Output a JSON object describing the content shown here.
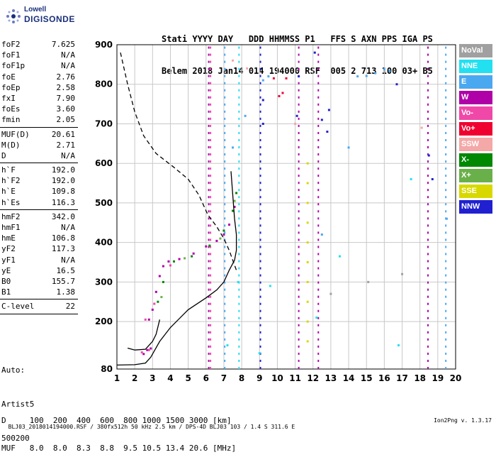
{
  "logo": {
    "line1": "Lowell",
    "line2": "DIGISONDE"
  },
  "header": {
    "row1": "Stati YYYY DAY   DDD HHMMSS P1   FFS S AXN PPS IGA PS",
    "row2": "Belem 2018 Jan14 014 194000 RSF  005 2 713 100 03+ B5"
  },
  "params": [
    {
      "k": "foF2",
      "v": "7.625"
    },
    {
      "k": "foF1",
      "v": "N/A"
    },
    {
      "k": "foF1p",
      "v": "N/A"
    },
    {
      "k": "foE",
      "v": "2.76"
    },
    {
      "k": "foEp",
      "v": "2.58"
    },
    {
      "k": "fxI",
      "v": "7.90"
    },
    {
      "k": "foEs",
      "v": "3.60"
    },
    {
      "k": "fmin",
      "v": "2.05"
    },
    {
      "sep": true
    },
    {
      "k": "MUF(D)",
      "v": "20.61"
    },
    {
      "k": "M(D)",
      "v": "2.71"
    },
    {
      "k": "D",
      "v": "N/A"
    },
    {
      "sep": true
    },
    {
      "k": "h`F",
      "v": "192.0"
    },
    {
      "k": "h`F2",
      "v": "192.0"
    },
    {
      "k": "h`E",
      "v": "109.8"
    },
    {
      "k": "h`Es",
      "v": "116.3"
    },
    {
      "sep": true
    },
    {
      "k": "hmF2",
      "v": "342.0"
    },
    {
      "k": "hmF1",
      "v": "N/A"
    },
    {
      "k": "hmE",
      "v": "106.8"
    },
    {
      "k": "yF2",
      "v": "117.3"
    },
    {
      "k": "yF1",
      "v": "N/A"
    },
    {
      "k": "yE",
      "v": "16.5"
    },
    {
      "k": "B0",
      "v": "155.7"
    },
    {
      "k": "B1",
      "v": "1.38"
    },
    {
      "sep": true
    },
    {
      "k": "C-level",
      "v": "22"
    },
    {
      "sep": true
    }
  ],
  "extra": {
    "line1": "Auto:",
    "line2": "Artist5",
    "line3": "500200"
  },
  "legend": [
    {
      "label": "NoVal",
      "color": "#a0a0a0"
    },
    {
      "label": "NNE",
      "color": "#22e0f0"
    },
    {
      "label": "E",
      "color": "#4aa8f0"
    },
    {
      "label": "W",
      "color": "#b000a8"
    },
    {
      "label": "Vo-",
      "color": "#f048a8"
    },
    {
      "label": "Vo+",
      "color": "#f00030"
    },
    {
      "label": "SSW",
      "color": "#f4a8a8"
    },
    {
      "label": "X-",
      "color": "#008800"
    },
    {
      "label": "X+",
      "color": "#6ab04a"
    },
    {
      "label": "SSE",
      "color": "#d8d800"
    },
    {
      "label": "NNW",
      "color": "#2020d0"
    }
  ],
  "bottom": {
    "line1": "D     100  200  400  600  800 1000 1500 3000 [km]",
    "line2": "MUF   8.0  8.0  8.3  8.8  9.5 10.5 13.4 20.6 [MHz]"
  },
  "footer": {
    "left": "BLJ03_2018014194000.RSF / 380fx512h 50 kHz 2.5 km / DPS-4D BLJ03 103 / 1.4 S 311.6 E",
    "right": "Ion2Png v. 1.3.17"
  },
  "chart_data": {
    "type": "scatter",
    "title": "",
    "xlabel": "",
    "ylabel": "",
    "xlim": [
      1,
      20
    ],
    "ylim": [
      80,
      900
    ],
    "x_ticks": [
      1,
      2,
      3,
      4,
      5,
      6,
      7,
      8,
      9,
      10,
      11,
      12,
      13,
      14,
      15,
      16,
      17,
      18,
      19,
      20
    ],
    "y_ticks": [
      80,
      200,
      300,
      400,
      500,
      600,
      700,
      800,
      900
    ],
    "grid": true,
    "series": [
      {
        "name": "W",
        "color": "#b000a8",
        "points": [
          [
            2.8,
            205
          ],
          [
            3.0,
            230
          ],
          [
            3.2,
            275
          ],
          [
            3.4,
            315
          ],
          [
            3.6,
            340
          ],
          [
            3.9,
            352
          ],
          [
            4.5,
            358
          ],
          [
            5.3,
            372
          ],
          [
            6.0,
            390
          ],
          [
            6.6,
            404
          ],
          [
            7.0,
            420
          ],
          [
            7.3,
            445
          ],
          [
            7.6,
            490
          ],
          [
            2.7,
            128
          ],
          [
            2.9,
            132
          ],
          [
            2.5,
            118
          ]
        ]
      },
      {
        "name": "X-",
        "color": "#008800",
        "points": [
          [
            3.3,
            250
          ],
          [
            3.6,
            300
          ],
          [
            4.2,
            352
          ],
          [
            5.2,
            365
          ],
          [
            6.2,
            392
          ],
          [
            7.0,
            430
          ],
          [
            7.5,
            480
          ],
          [
            7.7,
            525
          ]
        ]
      },
      {
        "name": "X+",
        "color": "#6ab04a",
        "points": [
          [
            3.5,
            262
          ],
          [
            4.8,
            360
          ],
          [
            6.8,
            410
          ],
          [
            7.6,
            505
          ]
        ]
      },
      {
        "name": "Vo-",
        "color": "#f048a8",
        "points": [
          [
            2.6,
            205
          ],
          [
            3.1,
            245
          ],
          [
            4.0,
            342
          ],
          [
            2.8,
            128
          ],
          [
            2.4,
            122
          ]
        ]
      },
      {
        "name": "Vo+",
        "color": "#f00030",
        "points": [
          [
            10.1,
            770
          ],
          [
            10.3,
            778
          ],
          [
            9.8,
            815
          ],
          [
            10.5,
            815
          ]
        ]
      },
      {
        "name": "E",
        "color": "#4aa8f0",
        "points": [
          [
            9.2,
            810
          ],
          [
            9.5,
            820
          ],
          [
            14.5,
            820
          ],
          [
            15.0,
            821
          ],
          [
            15.5,
            828
          ],
          [
            16.0,
            838
          ],
          [
            16.3,
            833
          ],
          [
            8.2,
            720
          ],
          [
            7.5,
            640
          ],
          [
            12.5,
            420
          ],
          [
            14.0,
            640
          ],
          [
            19.5,
            460
          ]
        ]
      },
      {
        "name": "NNE",
        "color": "#22e0f0",
        "points": [
          [
            7.8,
            300
          ],
          [
            9.6,
            290
          ],
          [
            7.2,
            140
          ],
          [
            9.0,
            120
          ],
          [
            16.8,
            140
          ],
          [
            12.2,
            210
          ],
          [
            13.5,
            365
          ],
          [
            17.5,
            560
          ]
        ]
      },
      {
        "name": "SSE",
        "color": "#d8d800",
        "points": [
          [
            11.7,
            600
          ],
          [
            11.7,
            550
          ],
          [
            11.7,
            500
          ],
          [
            11.7,
            450
          ],
          [
            11.7,
            400
          ],
          [
            11.7,
            350
          ],
          [
            11.7,
            300
          ],
          [
            11.7,
            250
          ],
          [
            11.7,
            200
          ],
          [
            11.7,
            150
          ]
        ]
      },
      {
        "name": "NNW",
        "color": "#2020d0",
        "points": [
          [
            9.2,
            760
          ],
          [
            9.2,
            700
          ],
          [
            12.8,
            680
          ],
          [
            12.5,
            710
          ],
          [
            18.5,
            620
          ],
          [
            18.7,
            560
          ],
          [
            11.2,
            820
          ],
          [
            11.1,
            720
          ],
          [
            12.1,
            880
          ],
          [
            12.9,
            735
          ],
          [
            16.7,
            800
          ]
        ]
      },
      {
        "name": "SSW",
        "color": "#f4a8a8",
        "points": [
          [
            7.5,
            860
          ],
          [
            8.3,
            840
          ],
          [
            18.1,
            690
          ],
          [
            11.0,
            700
          ]
        ]
      },
      {
        "name": "NoVal",
        "color": "#a0a0a0",
        "points": [
          [
            15.1,
            300
          ],
          [
            17.0,
            320
          ],
          [
            13.0,
            270
          ]
        ]
      }
    ],
    "curves": [
      {
        "name": "profile",
        "style": "solid",
        "color": "#000000",
        "points": [
          [
            1.0,
            90
          ],
          [
            2.0,
            91
          ],
          [
            2.6,
            95
          ],
          [
            2.9,
            110
          ],
          [
            3.4,
            150
          ],
          [
            4.0,
            185
          ],
          [
            5.0,
            230
          ],
          [
            6.0,
            260
          ],
          [
            6.6,
            280
          ],
          [
            7.0,
            300
          ],
          [
            7.3,
            330
          ],
          [
            7.6,
            355
          ],
          [
            7.7,
            380
          ],
          [
            7.7,
            420
          ],
          [
            7.6,
            460
          ],
          [
            7.5,
            520
          ],
          [
            7.4,
            580
          ]
        ]
      },
      {
        "name": "trace",
        "style": "dashed",
        "color": "#000000",
        "points": [
          [
            1.2,
            880
          ],
          [
            1.6,
            800
          ],
          [
            2.0,
            730
          ],
          [
            2.5,
            670
          ],
          [
            3.2,
            625
          ],
          [
            4.2,
            590
          ],
          [
            5.0,
            560
          ],
          [
            5.6,
            520
          ],
          [
            6.1,
            470
          ],
          [
            6.6,
            440
          ],
          [
            7.0,
            410
          ],
          [
            7.3,
            380
          ],
          [
            7.5,
            355
          ],
          [
            7.7,
            330
          ]
        ]
      },
      {
        "name": "trace-lower",
        "style": "solid",
        "color": "#000000",
        "points": [
          [
            1.6,
            133
          ],
          [
            2.0,
            128
          ],
          [
            2.6,
            130
          ],
          [
            3.0,
            150
          ],
          [
            3.2,
            168
          ],
          [
            3.4,
            205
          ]
        ]
      }
    ],
    "vertical_bands": [
      {
        "x": 6.15,
        "color": "#b000a8"
      },
      {
        "x": 6.25,
        "color": "#f048a8"
      },
      {
        "x": 7.05,
        "color": "#4aa8f0"
      },
      {
        "x": 7.85,
        "color": "#22e0f0"
      },
      {
        "x": 9.05,
        "color": "#2020d0"
      },
      {
        "x": 11.2,
        "color": "#b000a8"
      },
      {
        "x": 12.3,
        "color": "#b000a8"
      },
      {
        "x": 18.45,
        "color": "#b000a8"
      },
      {
        "x": 19.45,
        "color": "#4aa8f0"
      }
    ]
  }
}
